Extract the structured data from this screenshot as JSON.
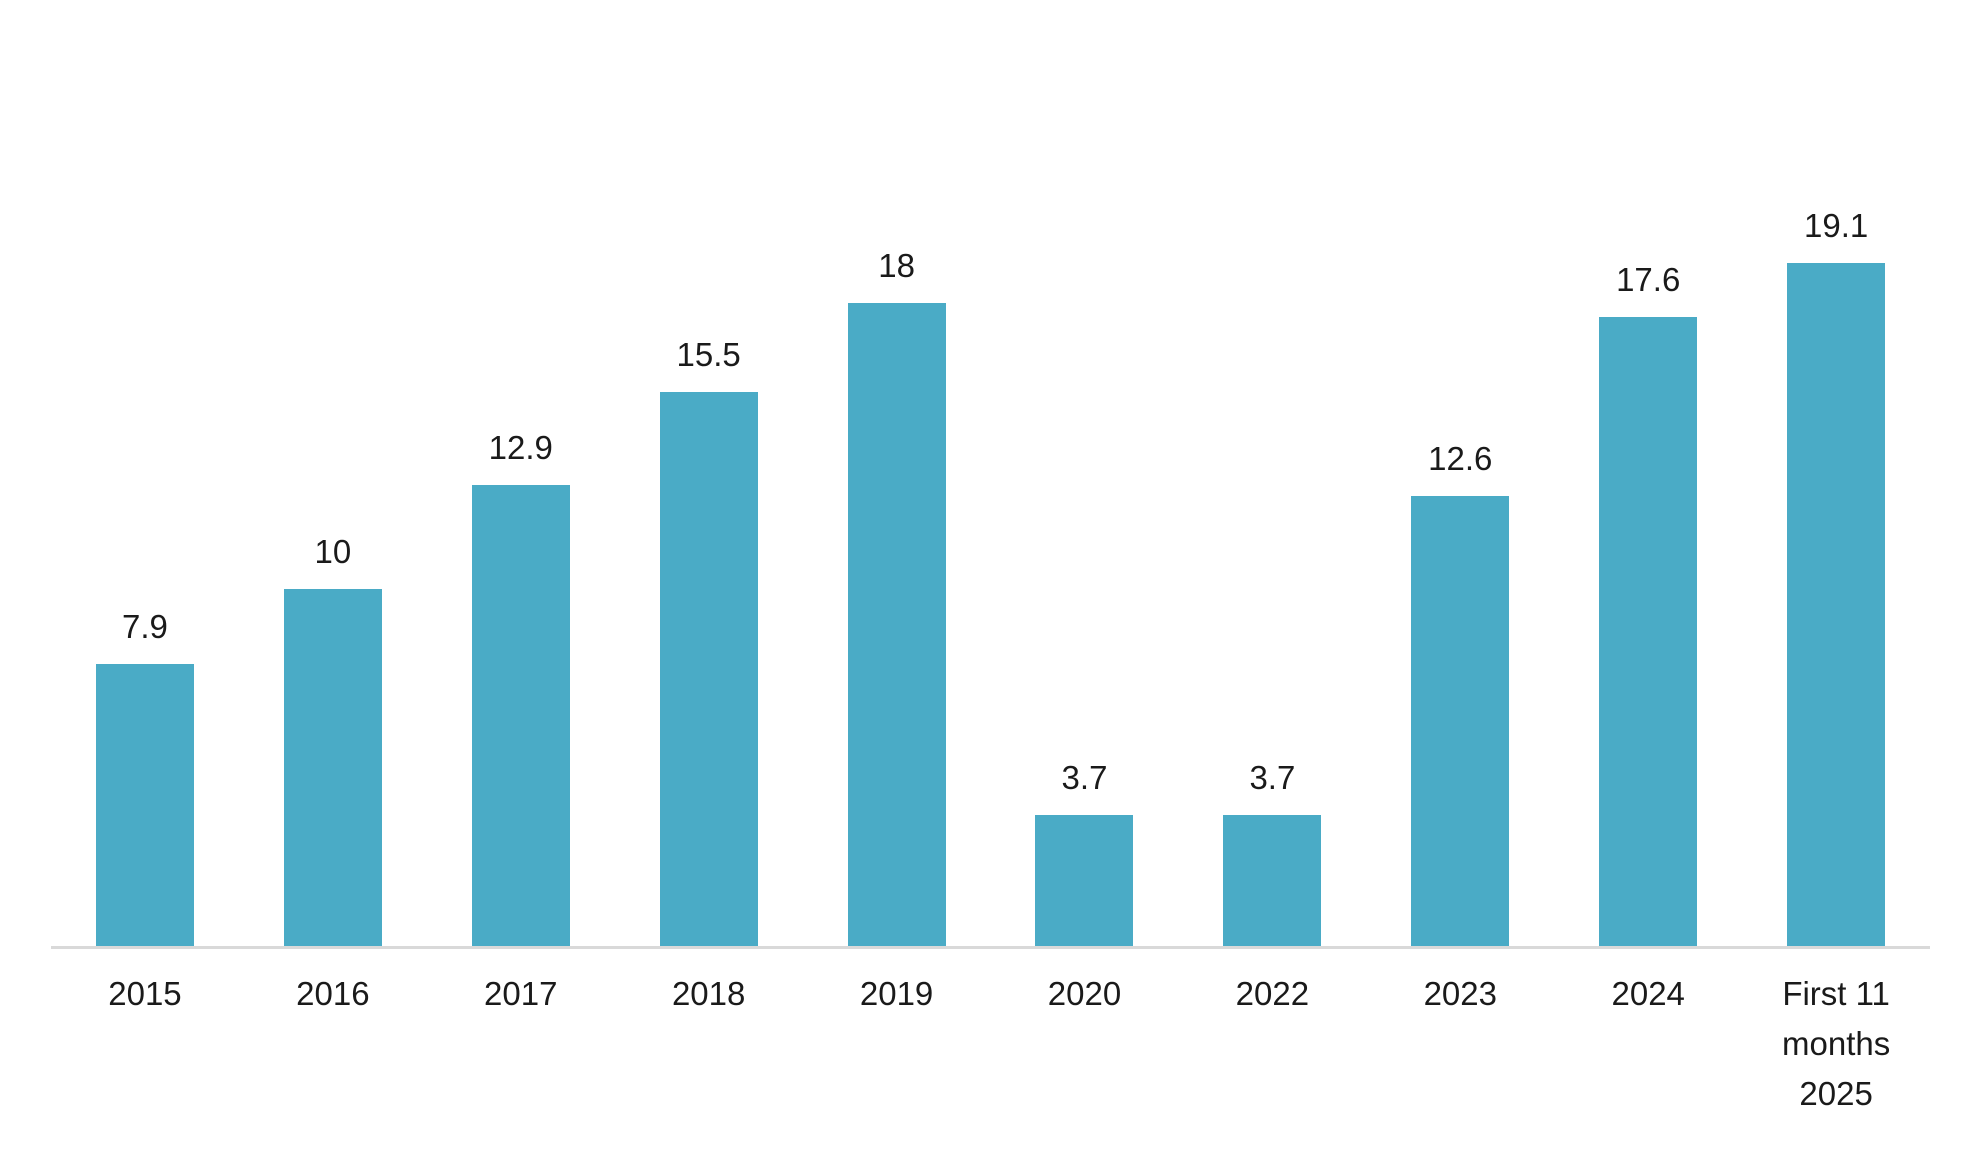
{
  "chart_data": {
    "type": "bar",
    "title": "",
    "xlabel": "",
    "ylabel": "",
    "categories": [
      "2015",
      "2016",
      "2017",
      "2018",
      "2019",
      "2020",
      "2022",
      "2023",
      "2024",
      "First 11 months 2025"
    ],
    "values": [
      7.9,
      10,
      12.9,
      15.5,
      18,
      3.7,
      3.7,
      12.6,
      17.6,
      19.1
    ],
    "value_labels": [
      "7.9",
      "10",
      "12.9",
      "15.5",
      "18",
      "3.7",
      "3.7",
      "12.6",
      "17.6",
      "19.1"
    ],
    "ylim": [
      0,
      20
    ],
    "grid": false,
    "legend": false,
    "data_labels_position": "above-bars",
    "bar_color": "#4AABC6",
    "axis_line_color": "#D9D9D9",
    "text_color": "#1A1A1A"
  }
}
